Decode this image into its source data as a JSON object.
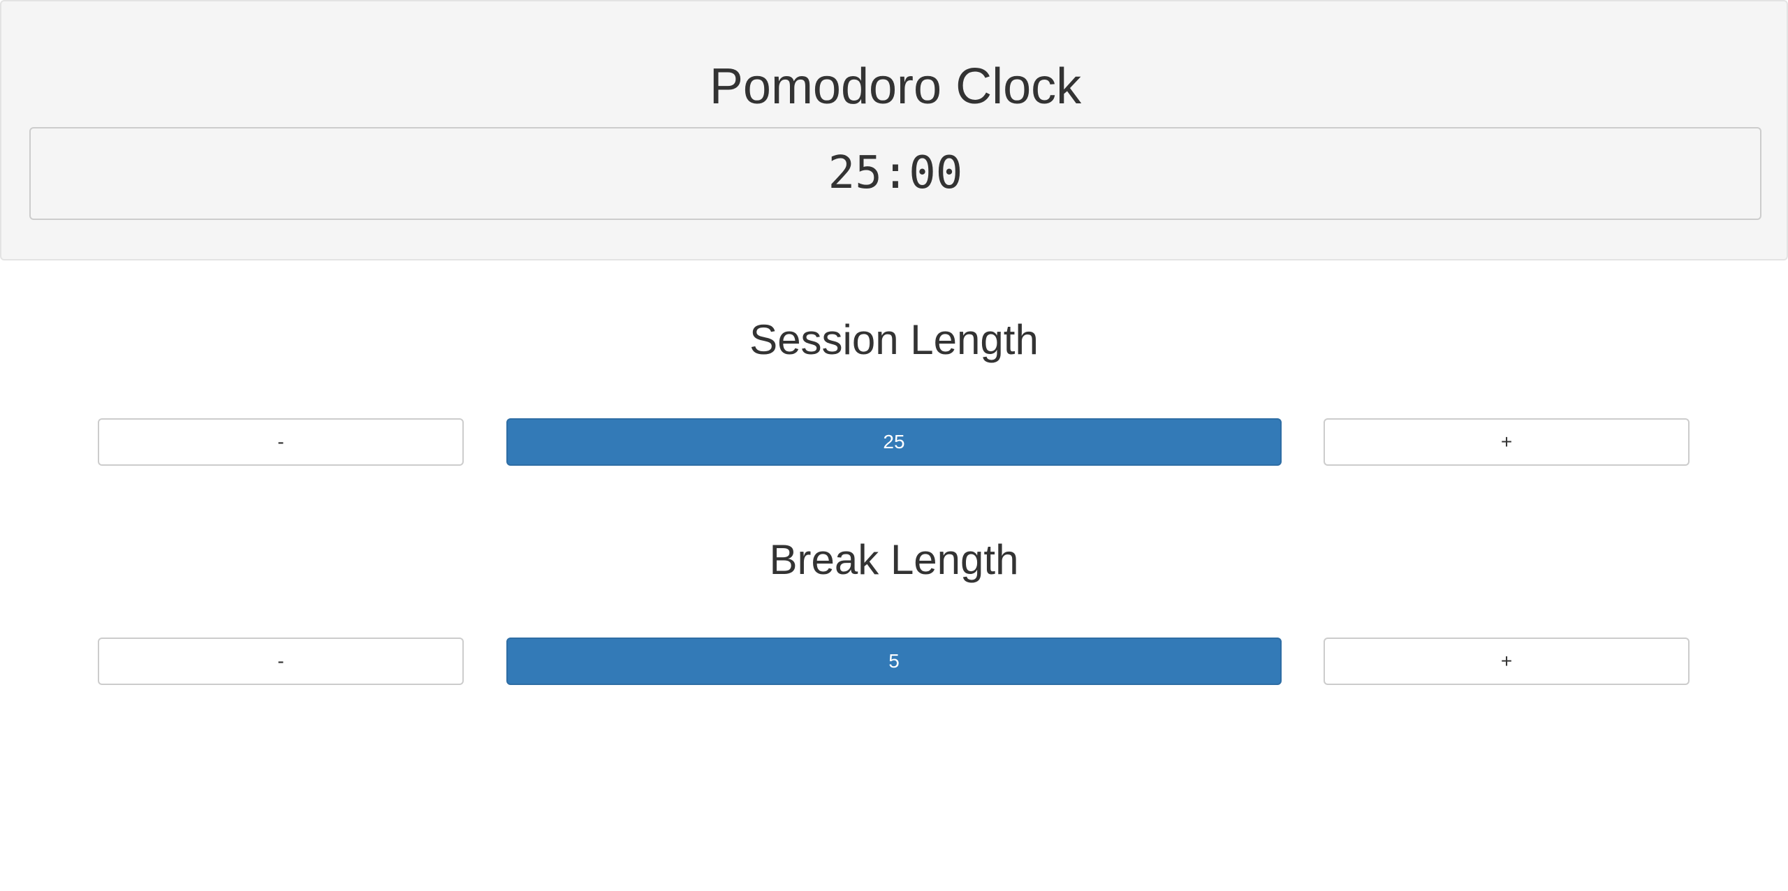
{
  "app": {
    "title": "Pomodoro Clock",
    "timer": "25:00"
  },
  "session": {
    "heading": "Session Length",
    "decrement_label": "-",
    "value": "25",
    "increment_label": "+"
  },
  "break": {
    "heading": "Break Length",
    "decrement_label": "-",
    "value": "5",
    "increment_label": "+"
  },
  "colors": {
    "panel_background": "#f5f5f5",
    "primary": "#337ab7",
    "text": "#333333"
  }
}
